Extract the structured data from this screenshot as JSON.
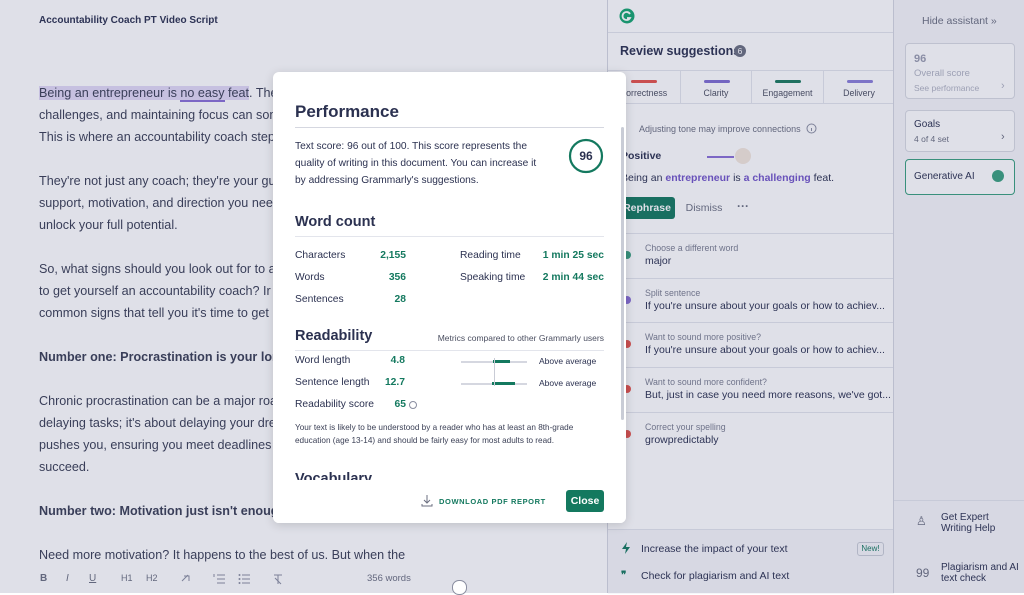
{
  "editor": {
    "title": "Accountability Coach PT Video Script",
    "first_line": [
      "Being an entrepreneur is ",
      "no easy",
      " feat",
      ". The"
    ],
    "paragraphs": [
      {
        "bold": false,
        "lines": [
          "challenges, and maintaining focus can som",
          "This is where an accountability coach step"
        ]
      },
      {
        "bold": false,
        "lines": [
          "They're not just any coach; they're your gu",
          "support, motivation, and direction you nee",
          "unlock your full potential."
        ]
      },
      {
        "bold": false,
        "lines": [
          "So, what signs should you look out for to a",
          "to get yourself an accountability coach? Ir",
          "common signs that tell you it's time to get"
        ]
      },
      {
        "bold": true,
        "lines": [
          "Number one: Procrastination is your long"
        ]
      },
      {
        "bold": false,
        "lines": [
          "Chronic procrastination can be a major roa",
          "delaying tasks; it's about delaying your dre",
          "pushes you, ensuring you meet deadlines a",
          "succeed."
        ]
      },
      {
        "bold": true,
        "lines": [
          "Number two: Motivation just isn't enough"
        ]
      },
      {
        "bold": false,
        "lines": [
          "Need more motivation? It happens to the best of us. But when the"
        ]
      }
    ],
    "toolbar": {
      "bold": "B",
      "italic": "I",
      "underline": "U",
      "h1": "H1",
      "h2": "H2",
      "word_count": "356 words"
    }
  },
  "suggestions_panel": {
    "title": "Review suggestions",
    "count": "6",
    "tabs": [
      {
        "name": "Correctness",
        "color": "#e5534b"
      },
      {
        "name": "Clarity",
        "color": "#7f6dd1"
      },
      {
        "name": "Engagement",
        "color": "#1b7a5e"
      },
      {
        "name": "Delivery",
        "color": "#8b7fd8"
      }
    ],
    "card": {
      "hint": "Adjusting tone may improve connections",
      "tone": "Positive",
      "sentence": [
        "Being an ",
        "entrepreneur",
        " is ",
        "a challenging",
        " feat."
      ],
      "primary_button": "Rephrase",
      "secondary_button": "Dismiss"
    },
    "items": [
      {
        "title": "Choose a different word",
        "text": "major"
      },
      {
        "title": "Split sentence",
        "text": "If you're unsure about your goals or how to achiev..."
      },
      {
        "title": "Want to sound more positive?",
        "text": "If you're unsure about your goals or how to achiev..."
      },
      {
        "title": "Want to sound more confident?",
        "text": "But, just in case you need more reasons, we've got..."
      },
      {
        "title": "Correct your spelling",
        "text": "growpredictably"
      }
    ],
    "footer": [
      {
        "text": "Increase the impact of your text",
        "badge": "New!"
      },
      {
        "text": "Check for plagiarism and AI text"
      }
    ]
  },
  "sidebar": {
    "hide": "Hide assistant",
    "score": "96",
    "score_label": "Overall score",
    "score_link": "See performance",
    "goals": "Goals",
    "goals_status": "4 of 4 set",
    "generative_ai": "Generative AI",
    "expert": "Get Expert Writing Help",
    "plagiarism": "Plagiarism and AI text check"
  },
  "modal": {
    "title": "Performance",
    "score_text": "Text score: 96 out of 100. This score represents the quality of writing in this document. You can increase it by addressing Grammarly's suggestions.",
    "score": "96",
    "word_count": {
      "title": "Word count",
      "rows": [
        [
          "Characters",
          "2,155"
        ],
        [
          "Words",
          "356"
        ],
        [
          "Sentences",
          "28"
        ]
      ],
      "times": [
        [
          "Reading time",
          "1 min 25 sec"
        ],
        [
          "Speaking time",
          "2 min 44 sec"
        ]
      ]
    },
    "readability": {
      "title": "Readability",
      "note": "Metrics compared to other Grammarly users",
      "rows": [
        {
          "label": "Word length",
          "value": "4.8",
          "comparison": "Above average"
        },
        {
          "label": "Sentence length",
          "value": "12.7",
          "comparison": "Above average"
        },
        {
          "label": "Readability score",
          "value": "65"
        }
      ],
      "description": "Your text is likely to be understood by a reader who has at least an 8th-grade education (age 13-14) and should be fairly easy for most adults to read."
    },
    "next_section": "Vocabulary",
    "download": "DOWNLOAD PDF REPORT",
    "close": "Close"
  }
}
